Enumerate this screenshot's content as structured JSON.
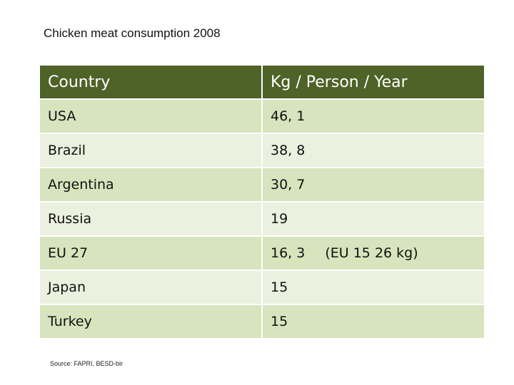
{
  "title": "Chicken meat consumption 2008",
  "table": {
    "headers": [
      "Country",
      "Kg / Person / Year"
    ],
    "rows": [
      {
        "country": "USA",
        "value": "46, 1",
        "note": ""
      },
      {
        "country": "Brazil",
        "value": "38, 8",
        "note": ""
      },
      {
        "country": "Argentina",
        "value": "30, 7",
        "note": ""
      },
      {
        "country": "Russia",
        "value": "19",
        "note": ""
      },
      {
        "country": "EU 27",
        "value": "16, 3",
        "note": "(EU 15  26 kg)"
      },
      {
        "country": "Japan",
        "value": "15",
        "note": ""
      },
      {
        "country": "Turkey",
        "value": "15",
        "note": ""
      }
    ]
  },
  "source": "Source: FAPRI, BESD-bir",
  "colors": {
    "header_bg": "#4f6228",
    "row_dark": "#d7e4bd",
    "row_light": "#ebf1de"
  }
}
